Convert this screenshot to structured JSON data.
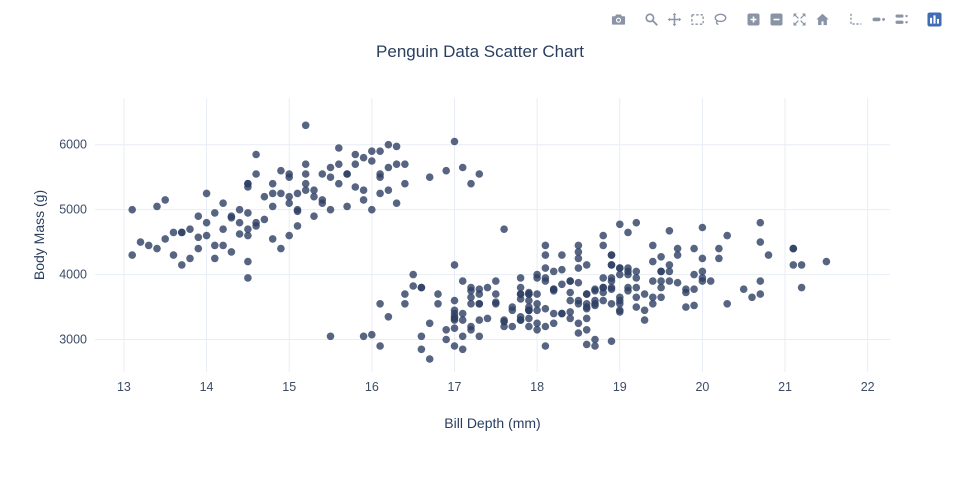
{
  "modebar": {
    "tools": [
      {
        "name": "download-plot",
        "icon": "camera-icon",
        "group": 1
      },
      {
        "name": "zoom",
        "icon": "zoom-icon",
        "group": 2
      },
      {
        "name": "pan",
        "icon": "pan-icon",
        "group": 2
      },
      {
        "name": "box-select",
        "icon": "box-select-icon",
        "group": 2
      },
      {
        "name": "lasso-select",
        "icon": "lasso-icon",
        "group": 2
      },
      {
        "name": "zoom-in",
        "icon": "zoom-in-icon",
        "group": 3
      },
      {
        "name": "zoom-out",
        "icon": "zoom-out-icon",
        "group": 3
      },
      {
        "name": "autoscale",
        "icon": "autoscale-icon",
        "group": 3
      },
      {
        "name": "reset-axes",
        "icon": "home-icon",
        "group": 3
      },
      {
        "name": "toggle-spikelines",
        "icon": "spikelines-icon",
        "group": 4
      },
      {
        "name": "hover-closest",
        "icon": "hover-closest-icon",
        "group": 4
      },
      {
        "name": "hover-compare",
        "icon": "hover-compare-icon",
        "group": 4
      },
      {
        "name": "plotly-logo",
        "icon": "plotly-logo-icon",
        "group": 5
      }
    ]
  },
  "chart_data": {
    "type": "scatter",
    "title": "Penguin Data Scatter Chart",
    "xlabel": "Bill Depth (mm)",
    "ylabel": "Body Mass (g)",
    "xlim": [
      12.65,
      22.27
    ],
    "ylim": [
      2500,
      6720
    ],
    "x_ticks": [
      13,
      14,
      15,
      16,
      17,
      18,
      19,
      20,
      21,
      22
    ],
    "y_ticks": [
      3000,
      4000,
      5000,
      6000
    ],
    "grid": true,
    "legend": "none",
    "marker_color": "#2d3f63",
    "marker_opacity": 0.8,
    "marker_radius": 3.8,
    "grid_color": "#e8edf5",
    "tick_color": "#3c4c66",
    "axis_title_color": "#2a3f5f",
    "points": [
      [
        13.2,
        4500
      ],
      [
        16.3,
        5700
      ],
      [
        14.1,
        4450
      ],
      [
        15.2,
        5700
      ],
      [
        14.5,
        5400
      ],
      [
        13.5,
        4550
      ],
      [
        14.6,
        4800
      ],
      [
        15.3,
        5200
      ],
      [
        13.4,
        4400
      ],
      [
        15.4,
        5150
      ],
      [
        13.7,
        4650
      ],
      [
        16.1,
        5550
      ],
      [
        13.7,
        4650
      ],
      [
        14.6,
        5550
      ],
      [
        14.6,
        4750
      ],
      [
        15.7,
        5050
      ],
      [
        13.5,
        5150
      ],
      [
        15.2,
        5400
      ],
      [
        14.5,
        4950
      ],
      [
        15.1,
        5250
      ],
      [
        14.3,
        4350
      ],
      [
        14.5,
        5350
      ],
      [
        14.5,
        3950
      ],
      [
        15.8,
        5700
      ],
      [
        13.1,
        4300
      ],
      [
        15.1,
        4750
      ],
      [
        15.2,
        5550
      ],
      [
        14.3,
        4900
      ],
      [
        14.5,
        4200
      ],
      [
        14.5,
        5400
      ],
      [
        16.3,
        5100
      ],
      [
        13.8,
        4700
      ],
      [
        14.2,
        4450
      ],
      [
        14.5,
        4600
      ],
      [
        17.3,
        5550
      ],
      [
        15.0,
        5500
      ],
      [
        14.2,
        4700
      ],
      [
        14.8,
        5400
      ],
      [
        15.0,
        4600
      ],
      [
        15.9,
        5300
      ],
      [
        14.3,
        4875
      ],
      [
        15.7,
        5550
      ],
      [
        14.1,
        4950
      ],
      [
        15.2,
        5300
      ],
      [
        14.8,
        5050
      ],
      [
        16.0,
        5000
      ],
      [
        14.2,
        5100
      ],
      [
        16.2,
        5650
      ],
      [
        14.0,
        4600
      ],
      [
        15.7,
        5550
      ],
      [
        14.5,
        4700
      ],
      [
        15.9,
        5800
      ],
      [
        13.9,
        4575
      ],
      [
        16.9,
        5600
      ],
      [
        15.1,
        5000
      ],
      [
        15.4,
        5550
      ],
      [
        14.4,
        4800
      ],
      [
        15.0,
        5200
      ],
      [
        14.9,
        4400
      ],
      [
        15.9,
        5150
      ],
      [
        15.3,
        5300
      ],
      [
        15.5,
        5650
      ],
      [
        16.1,
        5250
      ],
      [
        15.1,
        4975
      ],
      [
        16.0,
        5900
      ],
      [
        16.2,
        6000
      ],
      [
        16.3,
        5975
      ],
      [
        16.1,
        5900
      ],
      [
        15.2,
        6300
      ],
      [
        14.6,
        5850
      ],
      [
        13.1,
        5000
      ],
      [
        13.4,
        5050
      ],
      [
        17.0,
        6050
      ],
      [
        17.1,
        5650
      ],
      [
        16.7,
        5500
      ],
      [
        15.0,
        5100
      ],
      [
        14.8,
        5250
      ],
      [
        15.6,
        5400
      ],
      [
        15.6,
        5700
      ],
      [
        14.9,
        5250
      ],
      [
        15.3,
        4900
      ],
      [
        15.8,
        5350
      ],
      [
        16.4,
        5400
      ],
      [
        16.4,
        5700
      ],
      [
        14.4,
        5000
      ],
      [
        14.7,
        4850
      ],
      [
        13.6,
        4300
      ],
      [
        13.9,
        4900
      ],
      [
        14.0,
        4800
      ],
      [
        13.8,
        4250
      ],
      [
        14.1,
        4250
      ],
      [
        13.7,
        4150
      ],
      [
        13.6,
        4650
      ],
      [
        14.0,
        5250
      ],
      [
        14.9,
        5600
      ],
      [
        15.5,
        5500
      ],
      [
        15.6,
        5950
      ],
      [
        15.0,
        5550
      ],
      [
        16.1,
        5500
      ],
      [
        15.8,
        5850
      ],
      [
        16.0,
        5750
      ],
      [
        16.2,
        5300
      ],
      [
        14.7,
        5200
      ],
      [
        14.4,
        4625
      ],
      [
        13.3,
        4450
      ],
      [
        13.9,
        4400
      ],
      [
        15.4,
        5100
      ],
      [
        14.8,
        4550
      ],
      [
        15.5,
        5000
      ],
      [
        17.2,
        5400
      ],
      [
        18.7,
        3750
      ],
      [
        17.4,
        3800
      ],
      [
        18.0,
        3250
      ],
      [
        19.3,
        3450
      ],
      [
        20.6,
        3650
      ],
      [
        17.8,
        3625
      ],
      [
        19.6,
        4675
      ],
      [
        18.1,
        3475
      ],
      [
        20.2,
        4250
      ],
      [
        17.1,
        3300
      ],
      [
        17.3,
        3700
      ],
      [
        17.6,
        3200
      ],
      [
        21.2,
        3800
      ],
      [
        21.1,
        4400
      ],
      [
        17.8,
        3700
      ],
      [
        19.0,
        3450
      ],
      [
        20.7,
        4500
      ],
      [
        18.4,
        3325
      ],
      [
        21.5,
        4200
      ],
      [
        18.3,
        3400
      ],
      [
        18.7,
        3600
      ],
      [
        19.2,
        3800
      ],
      [
        18.1,
        3950
      ],
      [
        17.2,
        3800
      ],
      [
        18.9,
        3800
      ],
      [
        18.6,
        3550
      ],
      [
        17.9,
        3200
      ],
      [
        18.6,
        3150
      ],
      [
        18.9,
        3950
      ],
      [
        16.7,
        3250
      ],
      [
        18.1,
        3900
      ],
      [
        17.8,
        3300
      ],
      [
        18.9,
        3900
      ],
      [
        17.0,
        3325
      ],
      [
        21.1,
        4150
      ],
      [
        20.0,
        3950
      ],
      [
        18.5,
        3550
      ],
      [
        19.3,
        3300
      ],
      [
        19.1,
        4650
      ],
      [
        18.0,
        3150
      ],
      [
        18.4,
        3900
      ],
      [
        18.5,
        3100
      ],
      [
        19.7,
        4400
      ],
      [
        16.9,
        3000
      ],
      [
        18.8,
        4600
      ],
      [
        19.0,
        3425
      ],
      [
        18.9,
        2975
      ],
      [
        17.9,
        3450
      ],
      [
        21.2,
        4150
      ],
      [
        17.7,
        3500
      ],
      [
        18.9,
        4300
      ],
      [
        17.9,
        3450
      ],
      [
        19.5,
        4050
      ],
      [
        18.1,
        2900
      ],
      [
        18.6,
        3700
      ],
      [
        17.5,
        3550
      ],
      [
        18.8,
        3800
      ],
      [
        16.6,
        2850
      ],
      [
        19.1,
        3750
      ],
      [
        16.9,
        3150
      ],
      [
        21.1,
        4400
      ],
      [
        17.0,
        3600
      ],
      [
        18.2,
        4050
      ],
      [
        17.1,
        2850
      ],
      [
        18.0,
        3950
      ],
      [
        16.2,
        3350
      ],
      [
        19.1,
        4100
      ],
      [
        16.6,
        3050
      ],
      [
        19.4,
        4450
      ],
      [
        19.0,
        3600
      ],
      [
        18.4,
        3900
      ],
      [
        17.2,
        3550
      ],
      [
        18.9,
        4150
      ],
      [
        17.5,
        3700
      ],
      [
        18.5,
        4250
      ],
      [
        16.8,
        3700
      ],
      [
        19.4,
        3900
      ],
      [
        16.1,
        3550
      ],
      [
        19.1,
        4000
      ],
      [
        17.2,
        3200
      ],
      [
        17.6,
        4700
      ],
      [
        18.8,
        3800
      ],
      [
        19.4,
        4200
      ],
      [
        17.8,
        3350
      ],
      [
        20.3,
        3550
      ],
      [
        19.5,
        3800
      ],
      [
        18.6,
        3500
      ],
      [
        19.2,
        3950
      ],
      [
        18.8,
        3600
      ],
      [
        18.0,
        3550
      ],
      [
        18.1,
        4300
      ],
      [
        17.1,
        3400
      ],
      [
        18.1,
        4450
      ],
      [
        17.3,
        3300
      ],
      [
        18.9,
        4300
      ],
      [
        18.6,
        3700
      ],
      [
        18.5,
        4350
      ],
      [
        16.1,
        2900
      ],
      [
        18.5,
        4100
      ],
      [
        17.9,
        3725
      ],
      [
        20.0,
        4725
      ],
      [
        16.0,
        3075
      ],
      [
        20.0,
        4250
      ],
      [
        18.6,
        2925
      ],
      [
        18.9,
        3550
      ],
      [
        17.2,
        3750
      ],
      [
        20.0,
        3900
      ],
      [
        17.0,
        3175
      ],
      [
        19.0,
        4775
      ],
      [
        16.5,
        3825
      ],
      [
        20.3,
        4600
      ],
      [
        17.7,
        3200
      ],
      [
        19.5,
        4275
      ],
      [
        20.7,
        3900
      ],
      [
        18.3,
        4075
      ],
      [
        17.0,
        2900
      ],
      [
        20.5,
        3775
      ],
      [
        17.0,
        3350
      ],
      [
        18.6,
        3325
      ],
      [
        17.2,
        3150
      ],
      [
        19.8,
        3500
      ],
      [
        17.0,
        3450
      ],
      [
        18.5,
        3875
      ],
      [
        15.9,
        3050
      ],
      [
        19.0,
        4000
      ],
      [
        17.6,
        3275
      ],
      [
        18.3,
        4300
      ],
      [
        17.1,
        3050
      ],
      [
        18.0,
        4000
      ],
      [
        17.9,
        3325
      ],
      [
        19.2,
        3500
      ],
      [
        18.5,
        3600
      ],
      [
        18.8,
        3725
      ],
      [
        19.4,
        3550
      ],
      [
        17.5,
        3900
      ],
      [
        16.8,
        3550
      ],
      [
        18.0,
        3700
      ],
      [
        18.2,
        3775
      ],
      [
        17.4,
        3325
      ],
      [
        17.8,
        3800
      ],
      [
        18.9,
        3775
      ],
      [
        18.6,
        4150
      ],
      [
        17.9,
        3700
      ],
      [
        19.6,
        3900
      ],
      [
        18.7,
        3550
      ],
      [
        17.3,
        3775
      ],
      [
        16.4,
        3700
      ],
      [
        19.0,
        4100
      ],
      [
        17.7,
        3450
      ],
      [
        19.9,
        4000
      ],
      [
        18.4,
        3425
      ],
      [
        19.2,
        4050
      ],
      [
        18.2,
        3400
      ],
      [
        20.1,
        3900
      ],
      [
        15.5,
        3050
      ],
      [
        17.9,
        3500
      ],
      [
        19.5,
        3900
      ],
      [
        19.2,
        3650
      ],
      [
        18.7,
        3525
      ],
      [
        19.8,
        3725
      ],
      [
        17.8,
        3950
      ],
      [
        18.2,
        3250
      ],
      [
        18.2,
        3750
      ],
      [
        17.0,
        4150
      ],
      [
        20.7,
        3700
      ],
      [
        16.6,
        3800
      ],
      [
        19.9,
        3775
      ],
      [
        19.5,
        4050
      ],
      [
        17.5,
        3575
      ],
      [
        19.1,
        4050
      ],
      [
        17.0,
        3300
      ],
      [
        17.9,
        3700
      ],
      [
        18.5,
        4450
      ],
      [
        17.9,
        3600
      ],
      [
        19.6,
        4050
      ],
      [
        18.7,
        2900
      ],
      [
        17.3,
        3550
      ],
      [
        16.4,
        3550
      ],
      [
        19.0,
        3550
      ],
      [
        17.3,
        3550
      ],
      [
        19.7,
        3875
      ],
      [
        17.3,
        3050
      ],
      [
        18.8,
        4450
      ],
      [
        16.6,
        3800
      ],
      [
        19.9,
        3525
      ],
      [
        18.8,
        3950
      ],
      [
        19.4,
        3650
      ],
      [
        19.5,
        3650
      ],
      [
        16.5,
        4000
      ],
      [
        17.0,
        3400
      ],
      [
        19.8,
        3775
      ],
      [
        18.1,
        4100
      ],
      [
        18.2,
        3775
      ],
      [
        19.0,
        4100
      ],
      [
        18.7,
        3775
      ],
      [
        19.2,
        4800
      ],
      [
        17.8,
        3300
      ],
      [
        18.7,
        3000
      ],
      [
        16.7,
        2700
      ],
      [
        20.8,
        4300
      ],
      [
        18.4,
        3725
      ],
      [
        18.1,
        3200
      ],
      [
        19.0,
        3650
      ],
      [
        18.6,
        3475
      ],
      [
        17.9,
        3450
      ],
      [
        20.0,
        4050
      ],
      [
        18.3,
        3400
      ],
      [
        17.2,
        3650
      ],
      [
        19.3,
        3700
      ],
      [
        18.0,
        3450
      ],
      [
        17.8,
        3700
      ],
      [
        19.1,
        3800
      ],
      [
        18.4,
        3600
      ],
      [
        17.1,
        3900
      ],
      [
        18.9,
        4150
      ],
      [
        19.6,
        4150
      ],
      [
        17.6,
        3300
      ],
      [
        18.3,
        3850
      ],
      [
        19.7,
        4300
      ],
      [
        18.5,
        3250
      ],
      [
        20.7,
        4800
      ],
      [
        20.2,
        4400
      ],
      [
        19.9,
        4400
      ]
    ]
  }
}
